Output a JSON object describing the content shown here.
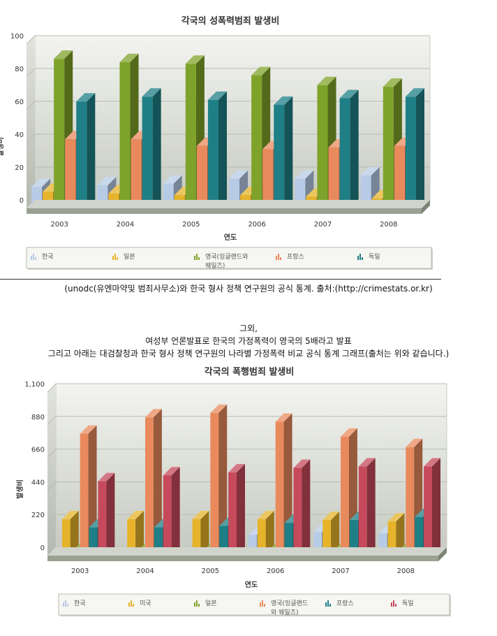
{
  "source_note": "(unodc(유엔마약및 범죄사무소)와 한국 형사 정책 연구원의 공식 통계. 출처:(http://crimestats.or.kr)",
  "middle_text": {
    "line1": "그외,",
    "line2": "여성부 언론발표로 한국의 가정폭력이 영국의 5배라고 발표",
    "line3": "그리고 아래는 대검찰청과 한국 형사 정책 연구원의 나라별 가정폭력 비교 공식 통계 그래프(출처는 위와 같습니다.)"
  },
  "chart_data": [
    {
      "type": "bar",
      "title": "각국의 성폭력범죄 발생비",
      "xlabel": "연도",
      "ylabel": "발생비",
      "ylim": [
        0,
        100
      ],
      "yticks": [
        0,
        20,
        40,
        60,
        80,
        100
      ],
      "grid": true,
      "legend_position": "bottom",
      "categories": [
        "2003",
        "2004",
        "2005",
        "2006",
        "2007",
        "2008"
      ],
      "series": [
        {
          "name": "한국",
          "color": "#b7cbe6",
          "values": [
            13,
            14,
            15,
            18,
            18,
            20
          ]
        },
        {
          "name": "일본",
          "color": "#e6b32a",
          "values": [
            10,
            9,
            8,
            8,
            7,
            6
          ]
        },
        {
          "name": "영국(잉글랜드와 웨일즈)",
          "color": "#7fa32a",
          "values": [
            91,
            89,
            88,
            81,
            75,
            74
          ]
        },
        {
          "name": "프랑스",
          "color": "#e98a5c",
          "values": [
            42,
            42,
            38,
            36,
            37,
            38
          ]
        },
        {
          "name": "독일",
          "color": "#1f7f86",
          "values": [
            65,
            68,
            66,
            63,
            67,
            68
          ]
        }
      ]
    },
    {
      "type": "bar",
      "title": "각국의 폭행범죄 발생비",
      "xlabel": "연도",
      "ylabel": "발생비",
      "ylim": [
        0,
        1100
      ],
      "yticks": [
        0,
        220,
        440,
        660,
        880,
        "1,100"
      ],
      "grid": true,
      "legend_position": "bottom",
      "categories": [
        "2003",
        "2004",
        "2005",
        "2006",
        "2007",
        "2008"
      ],
      "series": [
        {
          "name": "한국",
          "color": "#b7cbe6",
          "values": [
            0,
            0,
            0,
            140,
            160,
            150
          ]
        },
        {
          "name": "미국",
          "color": "#e6b32a",
          "values": [
            245,
            245,
            245,
            245,
            240,
            230
          ]
        },
        {
          "name": "일본",
          "color": "#7fa32a",
          "values": [
            20,
            20,
            20,
            20,
            20,
            20
          ]
        },
        {
          "name": "영국(잉글랜드와 웨일즈)",
          "color": "#e98a5c",
          "values": [
            820,
            930,
            960,
            900,
            800,
            730
          ]
        },
        {
          "name": "프랑스",
          "color": "#1f7f86",
          "values": [
            190,
            190,
            200,
            220,
            240,
            260
          ]
        },
        {
          "name": "독일",
          "color": "#c64a5c",
          "values": [
            500,
            540,
            560,
            590,
            600,
            600
          ]
        }
      ]
    }
  ]
}
